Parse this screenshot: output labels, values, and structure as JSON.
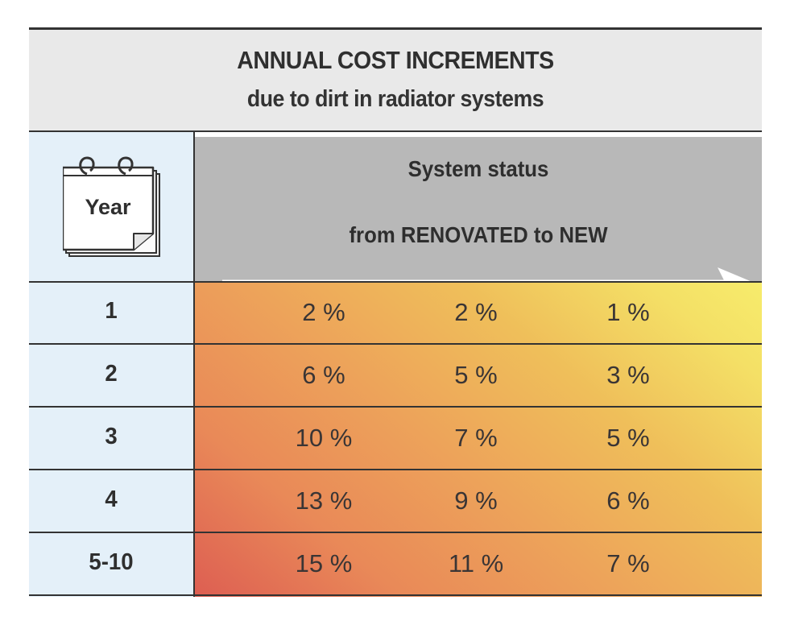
{
  "title": "ANNUAL COST INCREMENTS",
  "subtitle": "due to dirt in radiator systems",
  "year_header": "Year",
  "status_header": "System status",
  "status_direction": "from RENOVATED  to NEW",
  "colors": {
    "title_band": "#e9e9e9",
    "status_header": "#b8b8b8",
    "year_column": "#e4f0f9",
    "gradient_low": "#f7ec6c",
    "gradient_high": "#dd5e52"
  },
  "icons": {
    "calendar": "calendar-icon",
    "arrow": "right-arrow-icon"
  },
  "chart_data": {
    "type": "table",
    "title": "ANNUAL COST INCREMENTS",
    "subtitle": "due to dirt in radiator systems",
    "row_header": "Year",
    "column_header": "System status",
    "column_direction": "from RENOVATED  to NEW",
    "rows": [
      {
        "year": "1",
        "values": [
          "2 %",
          "2 %",
          "1 %"
        ]
      },
      {
        "year": "2",
        "values": [
          "6 %",
          "5 %",
          "3 %"
        ]
      },
      {
        "year": "3",
        "values": [
          "10 %",
          "7 %",
          "5 %"
        ]
      },
      {
        "year": "4",
        "values": [
          "13 %",
          "9 %",
          "6 %"
        ]
      },
      {
        "year": "5-10",
        "values": [
          "15 %",
          "11 %",
          "7 %"
        ]
      }
    ]
  }
}
